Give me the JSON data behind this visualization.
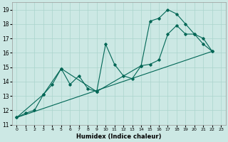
{
  "bg_color": "#cce8e4",
  "grid_color": "#aad4cc",
  "line_color": "#006655",
  "xlabel": "Humidex (Indice chaleur)",
  "xlim": [
    -0.5,
    23.5
  ],
  "ylim": [
    11,
    19.5
  ],
  "yticks": [
    11,
    12,
    13,
    14,
    15,
    16,
    17,
    18,
    19
  ],
  "xticks": [
    0,
    1,
    2,
    3,
    4,
    5,
    6,
    7,
    8,
    9,
    10,
    11,
    12,
    13,
    14,
    15,
    16,
    17,
    18,
    19,
    20,
    21,
    22,
    23
  ],
  "line1_x": [
    0,
    1,
    2,
    3,
    4,
    5,
    6,
    7,
    8,
    9,
    10,
    11,
    12,
    13,
    14,
    15,
    16,
    17,
    18,
    19,
    20,
    21,
    22
  ],
  "line1_y": [
    11.5,
    11.8,
    12.0,
    13.1,
    13.8,
    14.9,
    13.8,
    14.4,
    13.5,
    13.3,
    16.6,
    15.2,
    14.4,
    14.2,
    15.1,
    18.2,
    18.4,
    19.0,
    18.7,
    18.0,
    17.3,
    17.0,
    16.1
  ],
  "line2_x": [
    0,
    3,
    5,
    9,
    14,
    15,
    16,
    17,
    18,
    19,
    20,
    21,
    22
  ],
  "line2_y": [
    11.5,
    13.1,
    14.9,
    13.3,
    15.1,
    15.2,
    15.5,
    17.3,
    17.9,
    17.3,
    17.3,
    16.6,
    16.1
  ],
  "line3_x": [
    0,
    22
  ],
  "line3_y": [
    11.5,
    16.1
  ]
}
